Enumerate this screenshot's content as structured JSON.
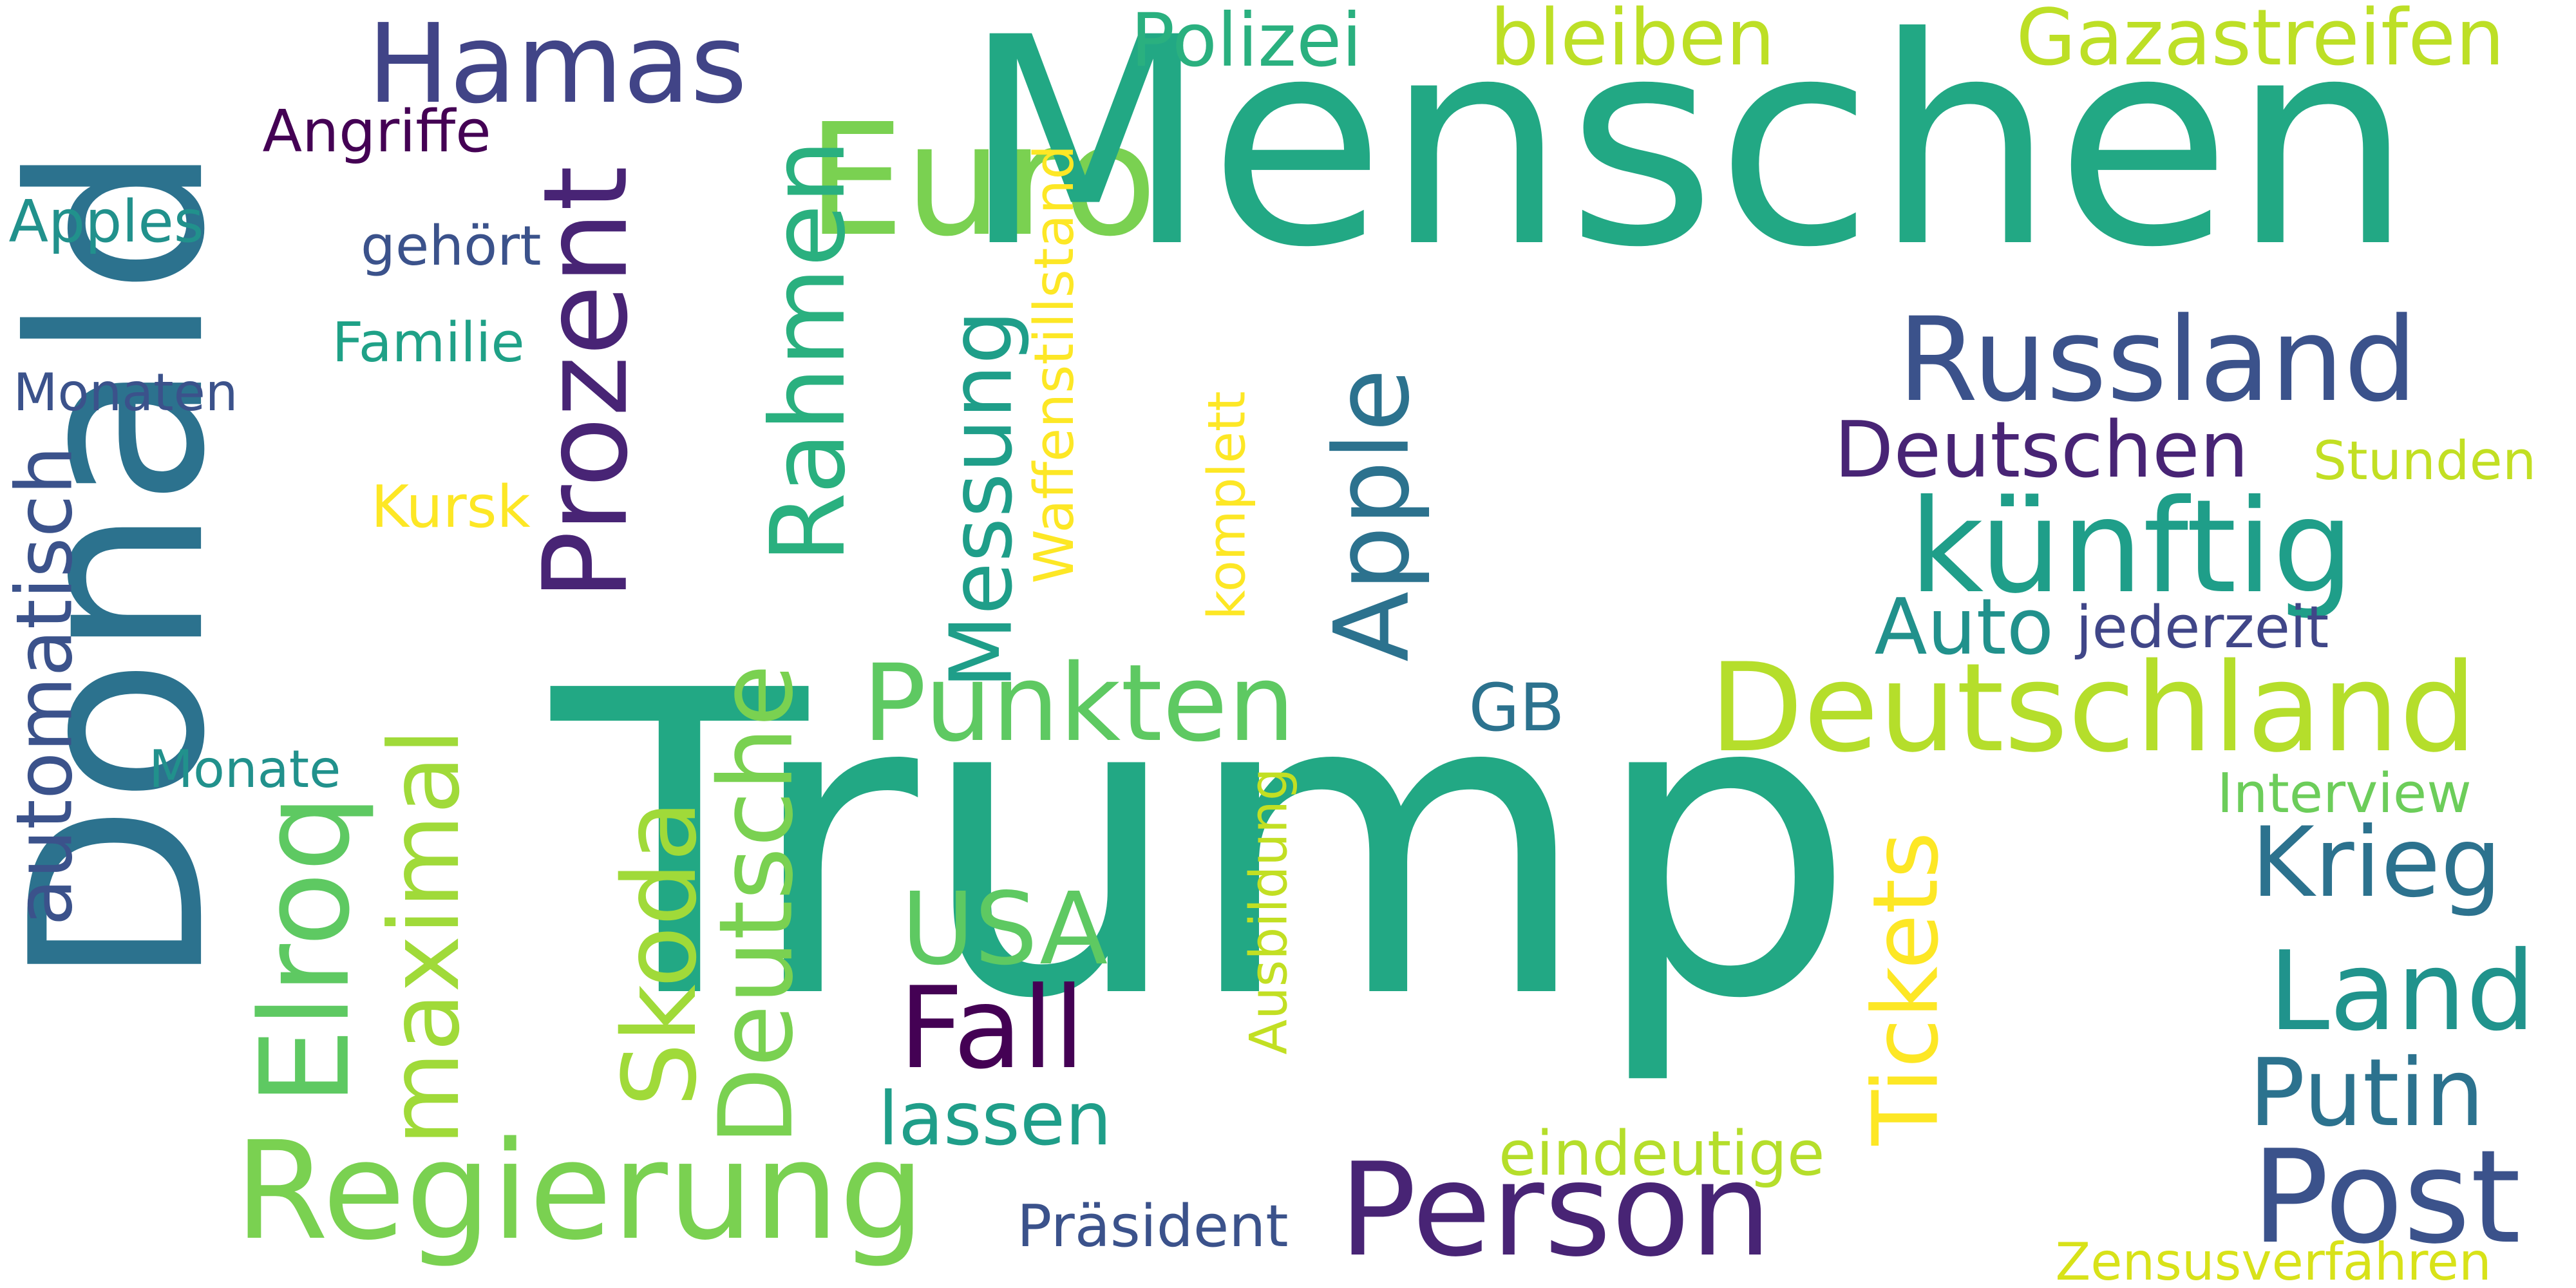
{
  "words": [
    {
      "text": "Euro",
      "color": "#7AD151",
      "orientation": "horizontal"
    },
    {
      "text": "Trump",
      "color": "#22A884",
      "orientation": "horizontal"
    },
    {
      "text": "Menschen",
      "color": "#22A884",
      "orientation": "horizontal"
    },
    {
      "text": "Donald",
      "color": "#2C728E",
      "orientation": "vertical"
    },
    {
      "text": "Hamas",
      "color": "#414487",
      "orientation": "horizontal"
    },
    {
      "text": "Polizei",
      "color": "#2AB07F",
      "orientation": "horizontal"
    },
    {
      "text": "bleiben",
      "color": "#BDDF26",
      "orientation": "horizontal"
    },
    {
      "text": "Gazastreifen",
      "color": "#BDDF26",
      "orientation": "horizontal"
    },
    {
      "text": "Angriffe",
      "color": "#440154",
      "orientation": "horizontal"
    },
    {
      "text": "Apples",
      "color": "#21918C",
      "orientation": "horizontal"
    },
    {
      "text": "gehört",
      "color": "#3B528B",
      "orientation": "horizontal"
    },
    {
      "text": "Familie",
      "color": "#1FA187",
      "orientation": "horizontal"
    },
    {
      "text": "Monaten",
      "color": "#3B528B",
      "orientation": "horizontal"
    },
    {
      "text": "automatisch",
      "color": "#3B528B",
      "orientation": "vertical"
    },
    {
      "text": "Kursk",
      "color": "#FDE725",
      "orientation": "horizontal"
    },
    {
      "text": "Monate",
      "color": "#21918C",
      "orientation": "horizontal"
    },
    {
      "text": "Elroq",
      "color": "#5EC962",
      "orientation": "vertical"
    },
    {
      "text": "maximal",
      "color": "#A0DA39",
      "orientation": "vertical"
    },
    {
      "text": "Prozent",
      "color": "#482475",
      "orientation": "vertical"
    },
    {
      "text": "Rahmen",
      "color": "#2AB07F",
      "orientation": "vertical"
    },
    {
      "text": "Skoda",
      "color": "#A0DA39",
      "orientation": "vertical"
    },
    {
      "text": "Deutsche",
      "color": "#7AD151",
      "orientation": "vertical"
    },
    {
      "text": "Messung",
      "color": "#1F9E89",
      "orientation": "vertical"
    },
    {
      "text": "Waffenstillstand",
      "color": "#FDE725",
      "orientation": "vertical"
    },
    {
      "text": "komplett",
      "color": "#FDE725",
      "orientation": "vertical"
    },
    {
      "text": "Apple",
      "color": "#2C728E",
      "orientation": "vertical"
    },
    {
      "text": "Ausbildung",
      "color": "#C2DF23",
      "orientation": "vertical"
    },
    {
      "text": "Tickets",
      "color": "#FDE725",
      "orientation": "vertical"
    },
    {
      "text": "Russland",
      "color": "#3B528B",
      "orientation": "horizontal"
    },
    {
      "text": "Deutschen",
      "color": "#482475",
      "orientation": "horizontal"
    },
    {
      "text": "Stunden",
      "color": "#C2DF23",
      "orientation": "horizontal"
    },
    {
      "text": "künftig",
      "color": "#1F9E89",
      "orientation": "horizontal"
    },
    {
      "text": "Auto",
      "color": "#21918C",
      "orientation": "horizontal"
    },
    {
      "text": "jederzeit",
      "color": "#404688",
      "orientation": "horizontal"
    },
    {
      "text": "Punkten",
      "color": "#5EC962",
      "orientation": "horizontal"
    },
    {
      "text": "GB",
      "color": "#2C728E",
      "orientation": "horizontal"
    },
    {
      "text": "Deutschland",
      "color": "#B5DE2B",
      "orientation": "horizontal"
    },
    {
      "text": "Interview",
      "color": "#6CCD5A",
      "orientation": "horizontal"
    },
    {
      "text": "Krieg",
      "color": "#2C728E",
      "orientation": "horizontal"
    },
    {
      "text": "USA",
      "color": "#5EC962",
      "orientation": "horizontal"
    },
    {
      "text": "Fall",
      "color": "#440154",
      "orientation": "horizontal"
    },
    {
      "text": "Land",
      "color": "#20938C",
      "orientation": "horizontal"
    },
    {
      "text": "Putin",
      "color": "#2C728E",
      "orientation": "horizontal"
    },
    {
      "text": "lassen",
      "color": "#1F9E89",
      "orientation": "horizontal"
    },
    {
      "text": "Regierung",
      "color": "#7AD151",
      "orientation": "horizontal"
    },
    {
      "text": "eindeutige",
      "color": "#B5DE2B",
      "orientation": "horizontal"
    },
    {
      "text": "Person",
      "color": "#482475",
      "orientation": "horizontal"
    },
    {
      "text": "Post",
      "color": "#3B528B",
      "orientation": "horizontal"
    },
    {
      "text": "Präsident",
      "color": "#3B528B",
      "orientation": "horizontal"
    },
    {
      "text": "Zensusverfahren",
      "color": "#D8E219",
      "orientation": "horizontal"
    }
  ]
}
